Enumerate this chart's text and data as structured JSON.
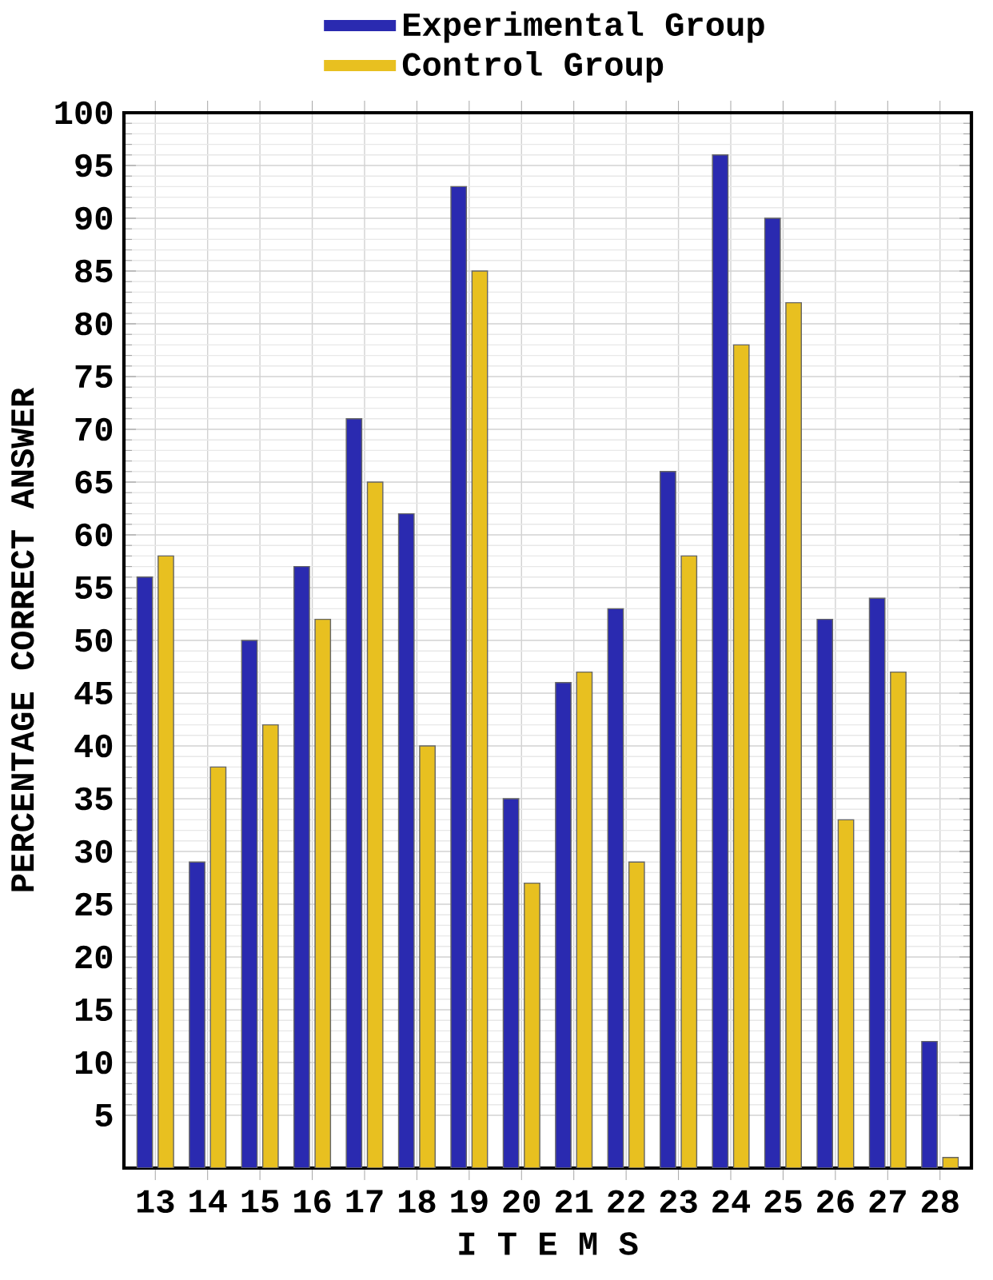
{
  "chart_data": {
    "type": "bar",
    "xlabel": "I T E M S",
    "ylabel": "PERCENTAGE CORRECT ANSWER",
    "categories": [
      "13",
      "14",
      "15",
      "16",
      "17",
      "18",
      "19",
      "20",
      "21",
      "22",
      "23",
      "24",
      "25",
      "26",
      "27",
      "28"
    ],
    "series": [
      {
        "name": "Experimental Group",
        "color": "#2a2ab0",
        "values": [
          56,
          29,
          50,
          57,
          71,
          62,
          93,
          35,
          46,
          53,
          66,
          96,
          90,
          52,
          54,
          12
        ]
      },
      {
        "name": "Control Group",
        "color": "#e8c020",
        "values": [
          58,
          38,
          42,
          52,
          65,
          40,
          85,
          27,
          47,
          29,
          58,
          78,
          82,
          33,
          47,
          1
        ]
      }
    ],
    "ylim": [
      0,
      100
    ],
    "yticks": [
      5,
      10,
      15,
      20,
      25,
      30,
      35,
      40,
      45,
      50,
      55,
      60,
      65,
      70,
      75,
      80,
      85,
      90,
      95,
      100
    ],
    "grid": true,
    "legend": "top"
  }
}
